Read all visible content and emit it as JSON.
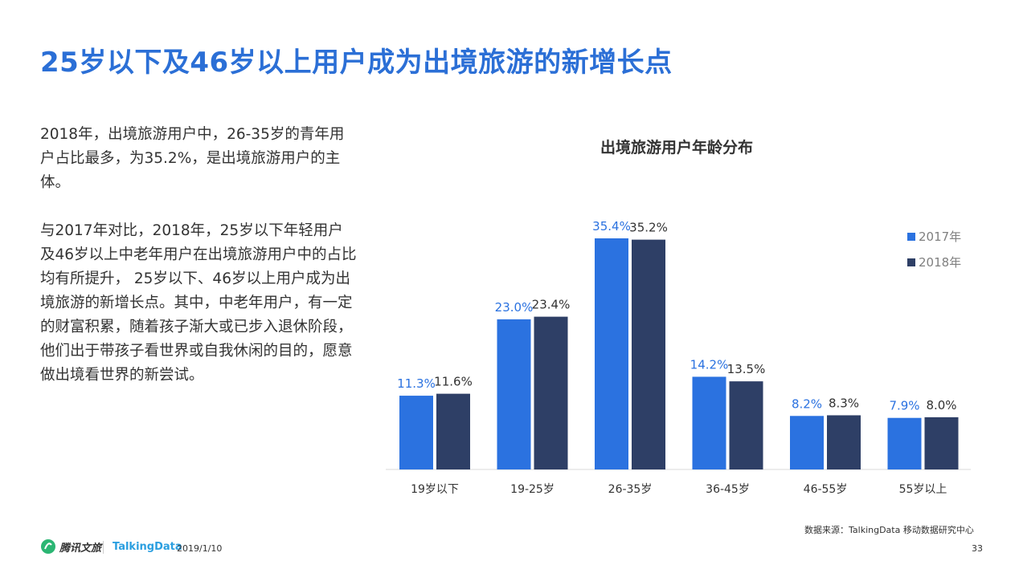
{
  "title": "25岁以下及46岁以上用户成为出境旅游的新增长点",
  "paragraphs": [
    "2018年，出境旅游用户中，26-35岁的青年用户占比最多，为35.2%，是出境旅游用户的主体。",
    "与2017年对比，2018年，25岁以下年轻用户及46岁以上中老年用户在出境旅游用户中的占比均有所提升， 25岁以下、46岁以上用户成为出境旅游的新增长点。其中，中老年用户，有一定的财富积累，随着孩子渐大或已步入退休阶段，他们出于带孩子看世界或自我休闲的目的，愿意做出境看世界的新尝试。"
  ],
  "source": "数据来源：TalkingData 移动数据研究中心",
  "footer": {
    "logo_text": "腾讯文旅",
    "brand": "TalkingData",
    "date": "2019/1/10",
    "page": "33"
  },
  "colors": {
    "accent": "#2b6fd6",
    "series_2017": "#2b72e0",
    "series_2018": "#2e3f66"
  },
  "chart_data": {
    "type": "bar",
    "title": "出境旅游用户年龄分布",
    "categories": [
      "19岁以下",
      "19-25岁",
      "26-35岁",
      "36-45岁",
      "46-55岁",
      "55岁以上"
    ],
    "series": [
      {
        "name": "2017年",
        "values": [
          11.3,
          23.0,
          35.4,
          14.2,
          8.2,
          7.9
        ],
        "labels": [
          "11.3%",
          "23.0%",
          "35.4%",
          "14.2%",
          "8.2%",
          "7.9%"
        ]
      },
      {
        "name": "2018年",
        "values": [
          11.6,
          23.4,
          35.2,
          13.5,
          8.3,
          8.0
        ],
        "labels": [
          "11.6%",
          "23.4%",
          "35.2%",
          "13.5%",
          "8.3%",
          "8.0%"
        ]
      }
    ],
    "ylim": [
      0,
      35.4
    ],
    "grid": false,
    "legend": "top-right"
  }
}
